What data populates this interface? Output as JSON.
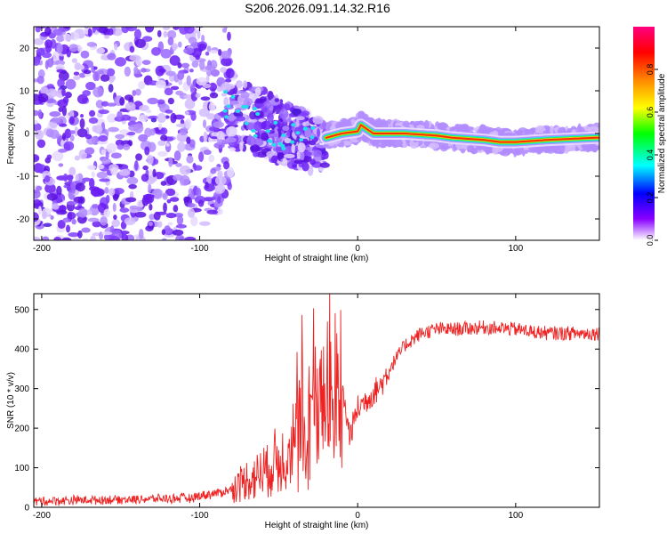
{
  "title": "S206.2026.091.14.32.R16",
  "chart_data": [
    {
      "type": "heatmap",
      "title": "S206.2026.091.14.32.R16",
      "xlabel": "Height of straight line (km)",
      "ylabel": "Frequency (Hz)",
      "xlim": [
        -205,
        153
      ],
      "ylim": [
        -25,
        25
      ],
      "xticks": [
        -200,
        -100,
        0,
        100
      ],
      "yticks": [
        -20,
        -10,
        0,
        10,
        20
      ],
      "colorbar": {
        "label": "Normalized spectral amplitude",
        "range": [
          0,
          1
        ],
        "ticks": [
          "0.0",
          "0.2",
          "0.4",
          "0.6",
          "0.8"
        ],
        "colors": [
          "#ffffff",
          "#8800ff",
          "#0000ff",
          "#00ffff",
          "#00ff00",
          "#ffff00",
          "#ff8800",
          "#ff0000",
          "#ff0080"
        ]
      },
      "ridge": {
        "description": "narrow high-amplitude line near 0 Hz",
        "x": [
          -20,
          -10,
          0,
          2,
          10,
          30,
          50,
          60,
          80,
          90,
          100,
          120,
          150
        ],
        "freq": [
          -1,
          0,
          0.5,
          2,
          0,
          0,
          -0.5,
          -1,
          -1.5,
          -2,
          -2,
          -1.5,
          -1
        ]
      }
    },
    {
      "type": "line",
      "xlabel": "Height of straight line (km)",
      "ylabel": "SNR (10 * v/v)",
      "xlim": [
        -205,
        153
      ],
      "ylim": [
        0,
        540
      ],
      "xticks": [
        -200,
        -100,
        0,
        100
      ],
      "yticks": [
        0,
        100,
        200,
        300,
        400,
        500
      ],
      "series": [
        {
          "name": "SNR",
          "color": "#ee2222",
          "x": [
            -205,
            -180,
            -150,
            -120,
            -105,
            -100,
            -90,
            -80,
            -70,
            -60,
            -50,
            -40,
            -35,
            -30,
            -25,
            -20,
            -15,
            -10,
            -5,
            0,
            5,
            10,
            15,
            20,
            25,
            30,
            40,
            50,
            60,
            80,
            100,
            120,
            153
          ],
          "values": [
            15,
            18,
            20,
            22,
            24,
            30,
            35,
            45,
            70,
            90,
            120,
            170,
            210,
            240,
            270,
            250,
            280,
            300,
            180,
            250,
            270,
            290,
            310,
            350,
            380,
            410,
            440,
            450,
            450,
            455,
            450,
            440,
            440
          ]
        }
      ]
    }
  ]
}
